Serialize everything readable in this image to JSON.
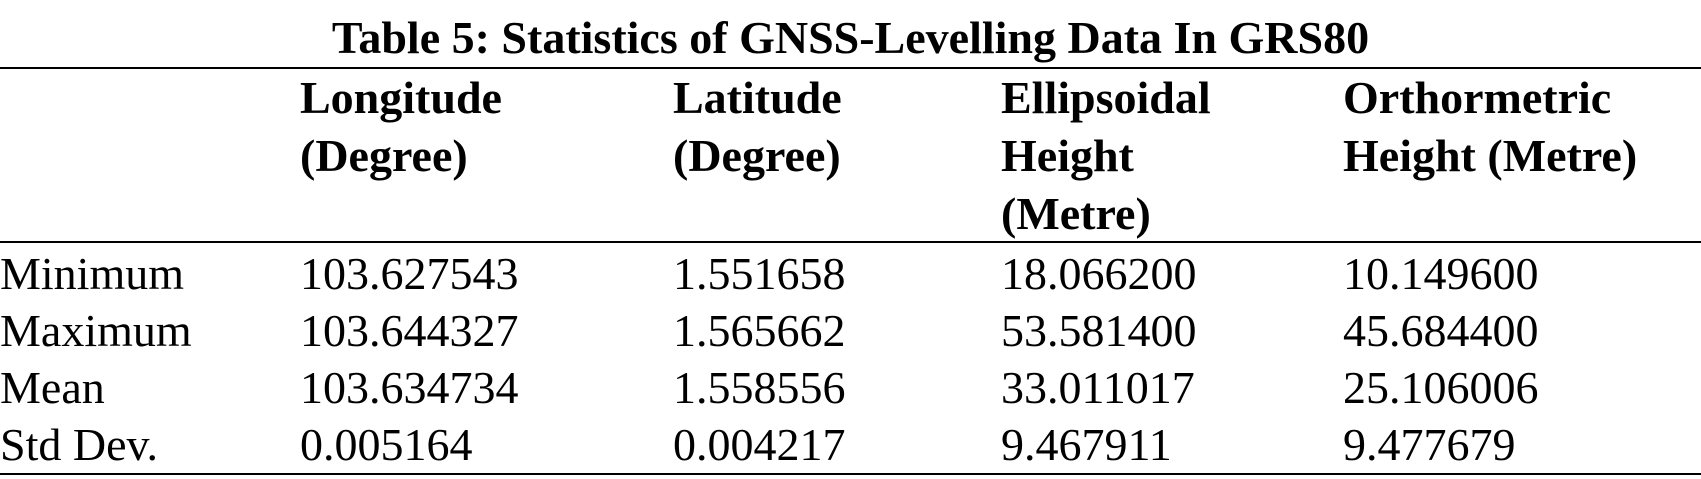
{
  "title": "Table 5: Statistics of GNSS-Levelling Data In GRS80",
  "table": {
    "header": [
      [
        "Longitude",
        "(Degree)"
      ],
      [
        "Latitude",
        "(Degree)"
      ],
      [
        "Ellipsoidal",
        "Height",
        "(Metre)"
      ],
      [
        "Orthormetric",
        "Height (Metre)"
      ]
    ],
    "rows": [
      [
        "Minimum",
        "103.627543",
        "1.551658",
        "18.066200",
        "10.149600"
      ],
      [
        "Maximum",
        "103.644327",
        "1.565662",
        "53.581400",
        "45.684400"
      ],
      [
        "Mean",
        "103.634734",
        "1.558556",
        "33.011017",
        "25.106006"
      ],
      [
        "Std Dev.",
        "0.005164",
        "0.004217",
        "9.467911",
        "9.477679"
      ]
    ]
  }
}
